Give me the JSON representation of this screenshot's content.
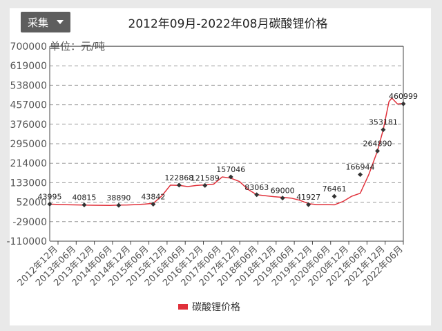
{
  "toolbar": {
    "collect_label": "采集",
    "dropdown_icon": "caret-down-icon"
  },
  "chart_data": {
    "type": "line",
    "title": "2012年09月-2022年08月碳酸锂价格",
    "ylabel": "单位：元/吨",
    "xlabel": "",
    "ylim": [
      -110000,
      700000
    ],
    "y_ticks": [
      -110000,
      -29000,
      52000,
      133000,
      214000,
      295000,
      376000,
      457000,
      538000,
      619000,
      700000
    ],
    "y_tick_labels": [
      "-110000",
      "-29000",
      "52000",
      "133000",
      "214000",
      "295000",
      "376000",
      "457000",
      "538000",
      "619000",
      "700000"
    ],
    "x_tick_labels": [
      "2012年12月",
      "2013年06月",
      "2013年12月",
      "2014年06月",
      "2014年12月",
      "2015年06月",
      "2015年12月",
      "2016年06月",
      "2016年12月",
      "2017年06月",
      "2017年12月",
      "2018年06月",
      "2018年12月",
      "2019年06月",
      "2019年12月",
      "2020年06月",
      "2020年12月",
      "2021年06月",
      "2021年12月",
      "2022年06月"
    ],
    "grid": true,
    "legend_position": "bottom",
    "series": [
      {
        "name": "碳酸锂价格",
        "color": "#e0303a",
        "line": [
          [
            "2012-09",
            43995
          ],
          [
            "2012-12",
            42500
          ],
          [
            "2013-03",
            41500
          ],
          [
            "2013-06",
            40815
          ],
          [
            "2013-09",
            40000
          ],
          [
            "2013-12",
            39500
          ],
          [
            "2014-03",
            39000
          ],
          [
            "2014-06",
            38890
          ],
          [
            "2014-09",
            39800
          ],
          [
            "2014-12",
            40500
          ],
          [
            "2015-03",
            42000
          ],
          [
            "2015-06",
            43842
          ],
          [
            "2015-09",
            47000
          ],
          [
            "2015-12",
            78000
          ],
          [
            "2016-03",
            122868
          ],
          [
            "2016-06",
            122000
          ],
          [
            "2016-09",
            117000
          ],
          [
            "2016-12",
            121589
          ],
          [
            "2017-03",
            124000
          ],
          [
            "2017-06",
            127000
          ],
          [
            "2017-09",
            157046
          ],
          [
            "2017-12",
            152000
          ],
          [
            "2018-03",
            138000
          ],
          [
            "2018-06",
            105000
          ],
          [
            "2018-09",
            83063
          ],
          [
            "2018-12",
            79000
          ],
          [
            "2019-03",
            75000
          ],
          [
            "2019-06",
            72000
          ],
          [
            "2019-09",
            69000
          ],
          [
            "2019-12",
            60000
          ],
          [
            "2020-03",
            46000
          ],
          [
            "2020-06",
            41927
          ],
          [
            "2020-09",
            42000
          ],
          [
            "2020-12",
            41000
          ],
          [
            "2021-03",
            55000
          ],
          [
            "2021-06",
            76461
          ],
          [
            "2021-09",
            89000
          ],
          [
            "2021-12",
            166944
          ],
          [
            "2022-03",
            264890
          ],
          [
            "2022-05",
            353181
          ],
          [
            "2022-07",
            470000
          ],
          [
            "2022-08",
            485000
          ],
          [
            "2022-10",
            460000
          ],
          [
            "2022-11",
            462000
          ],
          [
            "2022-12",
            460999
          ]
        ],
        "markers": [
          {
            "x": "2012-09",
            "y": 43995,
            "label": "43995"
          },
          {
            "x": "2013-09",
            "y": 40815,
            "label": "40815"
          },
          {
            "x": "2014-09",
            "y": 38890,
            "label": "38890"
          },
          {
            "x": "2015-09",
            "y": 43842,
            "label": "43842"
          },
          {
            "x": "2016-06",
            "y": 122868,
            "label": "122868"
          },
          {
            "x": "2017-03",
            "y": 121589,
            "label": "121589"
          },
          {
            "x": "2017-12",
            "y": 157046,
            "label": "157046"
          },
          {
            "x": "2018-09",
            "y": 83063,
            "label": "83063"
          },
          {
            "x": "2019-06",
            "y": 69000,
            "label": "69000"
          },
          {
            "x": "2020-03",
            "y": 41927,
            "label": "41927"
          },
          {
            "x": "2020-12",
            "y": 76461,
            "label": "76461"
          },
          {
            "x": "2021-09",
            "y": 166944,
            "label": "166944"
          },
          {
            "x": "2022-03",
            "y": 264890,
            "label": "264890"
          },
          {
            "x": "2022-05",
            "y": 353181,
            "label": "353181"
          },
          {
            "x": "2022-12",
            "y": 460999,
            "label": "460999"
          }
        ]
      }
    ]
  }
}
